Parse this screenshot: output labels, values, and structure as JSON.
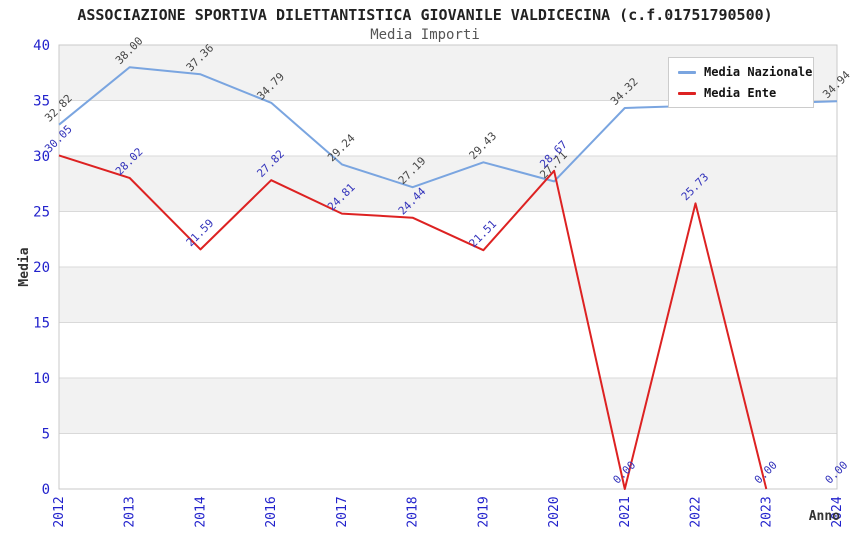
{
  "header": {
    "title": "ASSOCIAZIONE SPORTIVA DILETTANTISTICA GIOVANILE VALDICECINA (c.f.01751790500)",
    "subtitle": "Media Importi"
  },
  "chart_data": {
    "type": "line",
    "title": "ASSOCIAZIONE SPORTIVA DILETTANTISTICA GIOVANILE VALDICECINA (c.f.01751790500)",
    "subtitle": "Media Importi",
    "xlabel": "Anno",
    "ylabel": "Media",
    "ylim": [
      0,
      40
    ],
    "y_ticks": [
      0,
      5,
      10,
      15,
      20,
      25,
      30,
      35,
      40
    ],
    "categories": [
      "2012",
      "2013",
      "2014",
      "2016",
      "2017",
      "2018",
      "2019",
      "2020",
      "2021",
      "2022",
      "2023",
      "2024"
    ],
    "grid": "horizontal",
    "legend_position": "top-right",
    "band_fill_ranges": [
      [
        35,
        40
      ],
      [
        25,
        30
      ],
      [
        15,
        20
      ],
      [
        5,
        10
      ]
    ],
    "series": [
      {
        "name": "Media Nazionale",
        "color": "#7aa5e0",
        "label_color": "#474747",
        "values": [
          32.82,
          38.0,
          37.36,
          34.79,
          29.24,
          27.19,
          29.43,
          27.71,
          34.32,
          34.53,
          34.73,
          34.94
        ],
        "point_labels": [
          "32.82",
          "38.00",
          "37.36",
          "34.79",
          "29.24",
          "27.19",
          "29.43",
          "27.71",
          "34.32",
          "",
          "",
          "34.94"
        ]
      },
      {
        "name": "Media Ente",
        "color": "#dd2222",
        "label_color": "#3333bb",
        "values": [
          30.05,
          28.02,
          21.59,
          27.82,
          24.81,
          24.44,
          21.51,
          28.67,
          0.0,
          25.73,
          0.0,
          0.0
        ],
        "point_labels": [
          "30.05",
          "28.02",
          "21.59",
          "27.82",
          "24.81",
          "24.44",
          "21.51",
          "28.67",
          "0.00",
          "25.73",
          "0.00",
          "0.00"
        ]
      }
    ],
    "colors": {
      "tick_label": "#2222cc",
      "grid_line": "#d9d9d9",
      "band_gray": "#f2f2f2",
      "plot_border": "#c9c9c9",
      "axis_title": "#333333"
    }
  }
}
